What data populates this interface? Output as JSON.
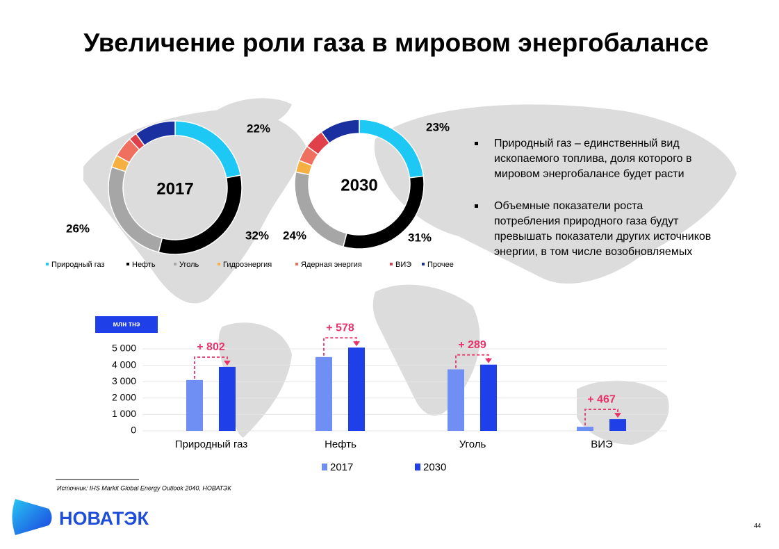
{
  "header": {
    "title": "Увеличение роли газа в мировом энергобалансе"
  },
  "chart_data": [
    {
      "type": "donut",
      "center_label": "2017",
      "categories": [
        "Природный газ",
        "Нефть",
        "Уголь",
        "Гидроэнергия",
        "Ядерная энергия",
        "ВИЭ",
        "Прочее"
      ],
      "colors": [
        "#1ec8f5",
        "#000000",
        "#a6a6a6",
        "#f5b041",
        "#f07060",
        "#e0404a",
        "#1a2fa0"
      ],
      "values": [
        22,
        32,
        26,
        3,
        5,
        2,
        10
      ],
      "value_labels": [
        "22%",
        "32%",
        "26%",
        null,
        null,
        null,
        null
      ]
    },
    {
      "type": "donut",
      "center_label": "2030",
      "values": [
        23,
        31,
        24,
        3,
        4,
        5,
        10
      ],
      "value_labels": [
        "23%",
        "31%",
        "24%",
        null,
        null,
        null,
        null
      ]
    },
    {
      "type": "bar",
      "unit": "млн тнэ",
      "categories": [
        "Природный газ",
        "Нефть",
        "Уголь",
        "ВИЭ"
      ],
      "series": [
        {
          "name": "2017",
          "color": "#6f8ff5",
          "values": [
            3100,
            4500,
            3750,
            250
          ]
        },
        {
          "name": "2030",
          "color": "#1f3fe8",
          "values": [
            3902,
            5078,
            4039,
            717
          ]
        }
      ],
      "annotations": [
        "+ 802",
        "+ 578",
        "+ 289",
        "+ 467"
      ],
      "ylim": [
        0,
        5400
      ],
      "yticks": [
        0,
        {
          "value": 1000,
          "label": "1 000"
        },
        {
          "value": 2000,
          "label": "2 000"
        },
        {
          "value": 3000,
          "label": "3 000"
        },
        {
          "value": 4000,
          "label": "4 000"
        },
        {
          "value": 5000,
          "label": "5 000"
        }
      ],
      "grid": true
    }
  ],
  "bullets": [
    [
      "Природный газ – единственный вид",
      "ископаемого топлива, доля которого в",
      "мировом энергобалансе будет расти"
    ],
    [
      "Объемные показатели роста",
      "потребления природного газа будут",
      "превышать показатели других источников",
      "энергии, в том числе возобновляемых"
    ]
  ],
  "source": "Источник: IHS Markit Global Energy Outlook 2040, НОВАТЭК",
  "logo": "НОВАТЭК",
  "page_number": "44"
}
